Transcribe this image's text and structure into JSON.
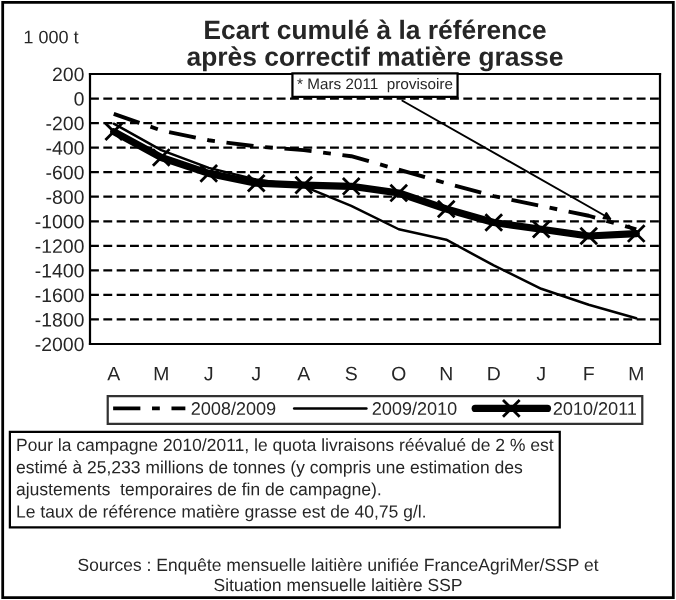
{
  "chart_data": {
    "type": "line",
    "title": "Ecart cumulé à la référence\naprès correctif matière grasse",
    "ylabel": "1 000 t",
    "categories": [
      "A",
      "M",
      "J",
      "J",
      "A",
      "S",
      "O",
      "N",
      "D",
      "J",
      "F",
      "M"
    ],
    "series": [
      {
        "name": "2008/2009",
        "color": "#000000",
        "line_style": "dashed",
        "marker": "none",
        "values": [
          -125,
          -260,
          -340,
          -390,
          -420,
          -470,
          -580,
          -690,
          -795,
          -875,
          -955,
          -1065
        ]
      },
      {
        "name": "2009/2010",
        "color": "#000000",
        "line_style": "solid",
        "marker": "none",
        "values": [
          -205,
          -420,
          -565,
          -660,
          -715,
          -875,
          -1065,
          -1150,
          -1360,
          -1550,
          -1680,
          -1790
        ]
      },
      {
        "name": "2010/2011",
        "color": "#000000",
        "line_style": "solid",
        "marker": "cross",
        "values": [
          -270,
          -480,
          -610,
          -690,
          -705,
          -715,
          -770,
          -900,
          -1010,
          -1065,
          -1120,
          -1100
        ]
      }
    ],
    "ylim": [
      -2000,
      200
    ],
    "yticks": [
      200,
      0,
      -200,
      -400,
      -600,
      -800,
      -1000,
      -1200,
      -1400,
      -1600,
      -1800,
      -2000
    ],
    "grid": "y",
    "legend": "bottom",
    "annotations": [
      "* Mars 2011  provisoire",
      "Pour la campagne 2010/2011, le quota livraisons réévalué de 2 % est\nestimé à 25,233 millions de tonnes (y compris une estimation des\najustements  temporaires de fin de campagne).\nLe taux de référence matière grasse est de 40,75 g/l.",
      "Sources : Enquête mensuelle laitière unifiée FranceAgriMer/SSP et\nSituation mensuelle laitière SSP"
    ]
  }
}
